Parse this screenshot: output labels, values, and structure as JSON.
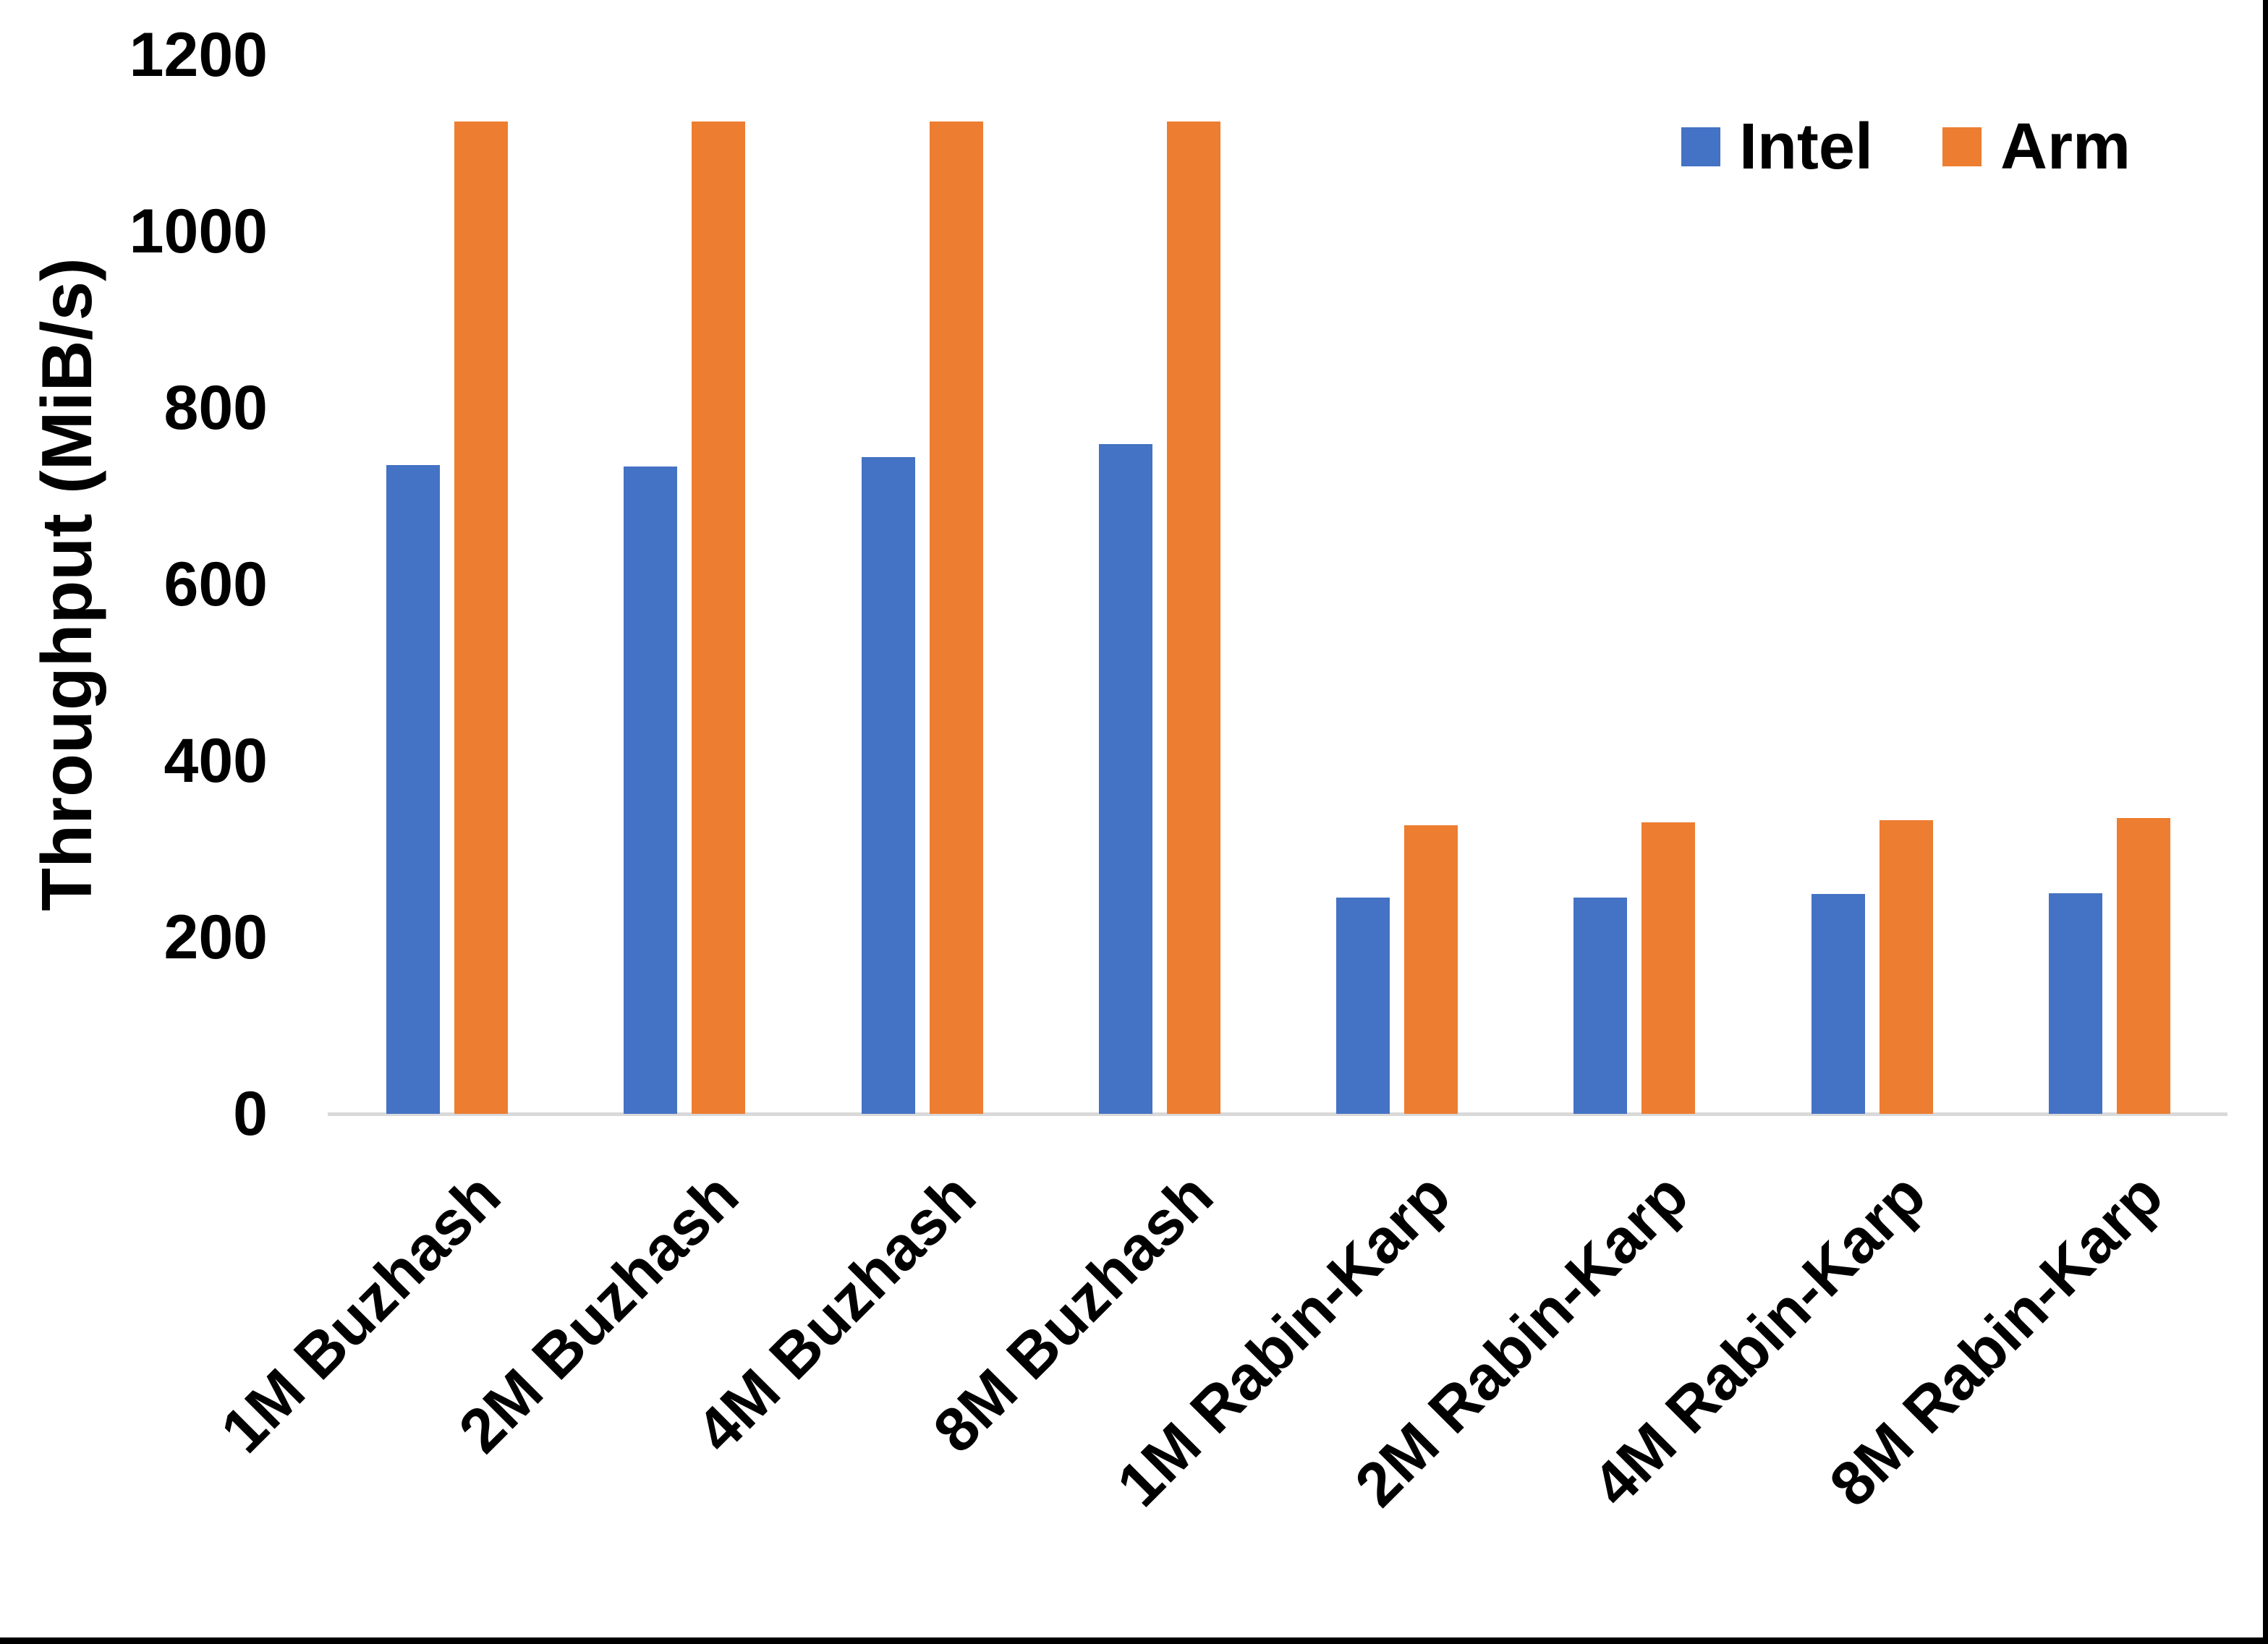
{
  "chart_data": {
    "type": "bar",
    "title": "",
    "xlabel": "",
    "ylabel": "Throughput (MiB/s)",
    "ylim": [
      0,
      1200
    ],
    "yticks": [
      0,
      200,
      400,
      600,
      800,
      1000,
      1200
    ],
    "grid": false,
    "legend_position": "top-right",
    "categories": [
      "1M Buzhash",
      "2M Buzhash",
      "4M Buzhash",
      "8M Buzhash",
      "1M Rabin-Karp",
      "2M Rabin-Karp",
      "4M Rabin-Karp",
      "8M Rabin-Karp"
    ],
    "series": [
      {
        "name": "Intel",
        "color": "#4472C4",
        "values": [
          735,
          734,
          744,
          759,
          245,
          245,
          249,
          250
        ]
      },
      {
        "name": "Arm",
        "color": "#ED7D31",
        "values": [
          1125,
          1125,
          1125,
          1125,
          327,
          330,
          333,
          335
        ]
      }
    ],
    "axis_line_color": "#D9D9D9",
    "text_color": "#000000"
  }
}
